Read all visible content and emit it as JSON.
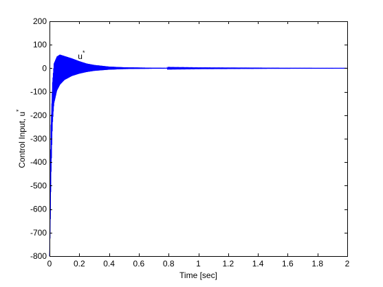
{
  "chart_data": {
    "type": "line",
    "xlabel": "Time [sec]",
    "ylabel": "Control Input, u",
    "ylabel_superscript": "*",
    "annotation": {
      "text": "u",
      "superscript": "*",
      "x": 0.2,
      "y": 68
    },
    "xlim": [
      0,
      2
    ],
    "ylim": [
      -800,
      200
    ],
    "x_ticks": [
      "0",
      "0.2",
      "0.4",
      "0.6",
      "0.8",
      "1",
      "1.2",
      "1.4",
      "1.6",
      "1.8",
      "2"
    ],
    "x_tick_values": [
      0,
      0.2,
      0.4,
      0.6,
      0.8,
      1.0,
      1.2,
      1.4,
      1.6,
      1.8,
      2.0
    ],
    "y_ticks": [
      "200",
      "100",
      "0",
      "-100",
      "-200",
      "-300",
      "-400",
      "-500",
      "-600",
      "-700",
      "-800"
    ],
    "y_tick_values": [
      200,
      100,
      0,
      -100,
      -200,
      -300,
      -400,
      -500,
      -600,
      -700,
      -800
    ],
    "grid": false,
    "series": [
      {
        "color": "#0000ff",
        "kind": "oscillation-envelope",
        "upper_envelope": {
          "x": [
            0,
            0.005,
            0.01,
            0.02,
            0.03,
            0.05,
            0.07,
            0.1,
            0.15,
            0.2,
            0.25,
            0.3,
            0.4,
            0.5,
            0.6,
            0.7,
            0.8,
            1.0,
            1.2,
            1.5,
            2.0
          ],
          "y": [
            -800,
            -450,
            -240,
            -60,
            20,
            50,
            58,
            52,
            42,
            30,
            20,
            14,
            7,
            4,
            3,
            2,
            1.5,
            1,
            0.8,
            0.5,
            0.3
          ]
        },
        "lower_envelope": {
          "x": [
            0,
            0.005,
            0.01,
            0.02,
            0.03,
            0.05,
            0.07,
            0.1,
            0.15,
            0.2,
            0.25,
            0.3,
            0.4,
            0.5,
            0.6,
            0.7,
            0.8,
            1.0,
            1.2,
            1.5,
            2.0
          ],
          "y": [
            -800,
            -700,
            -470,
            -240,
            -150,
            -95,
            -70,
            -50,
            -33,
            -23,
            -16,
            -11,
            -6,
            -3.5,
            -2.5,
            -1.8,
            -1.5,
            -1,
            -0.8,
            -0.5,
            -0.3
          ]
        }
      }
    ]
  }
}
